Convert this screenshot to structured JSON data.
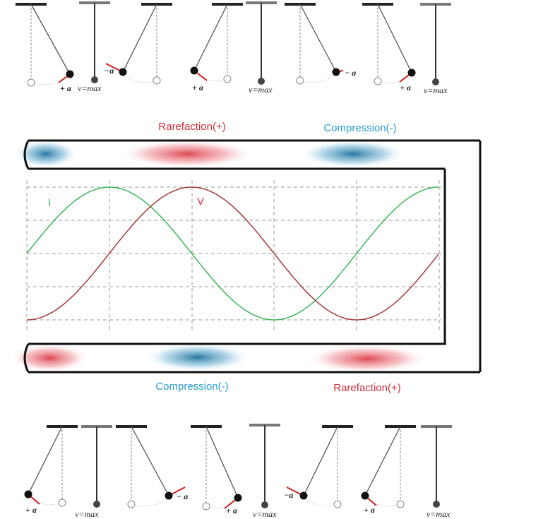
{
  "top_row": {
    "labels": [
      "+ a",
      "v=max",
      "−a",
      "+ a",
      "v=max",
      "− a",
      "+ a",
      "v=max"
    ]
  },
  "tubes": {
    "top_left_label": "Rarefaction(+)",
    "top_right_label": "Compression(-)",
    "bottom_left_label": "Compression(-)",
    "bottom_right_label": "Rarefaction(+)"
  },
  "wave": {
    "current_label": "I",
    "voltage_label": "V"
  },
  "bottom_row": {
    "labels": [
      "+ a",
      "v=max",
      "− a",
      "+ a",
      "v=max",
      "−a",
      "+ a",
      "v=max"
    ]
  }
}
